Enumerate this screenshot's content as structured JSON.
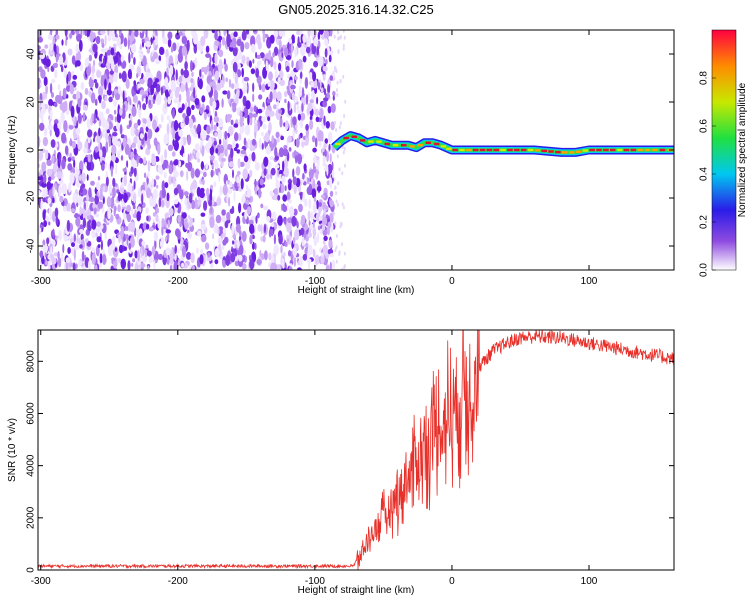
{
  "title": "GN05.2025.316.14.32.C25",
  "chart_data": [
    {
      "type": "heatmap",
      "xlabel": "Height of straight line (km)",
      "ylabel": "Frequency (Hz)",
      "xlim": [
        -302,
        162
      ],
      "ylim": [
        -50,
        50
      ],
      "xticks": [
        -300,
        -200,
        -100,
        0,
        100
      ],
      "yticks": [
        -40,
        -20,
        0,
        20,
        40
      ],
      "noise_region": [
        -302,
        -86
      ],
      "signal_track": {
        "x": [
          -86,
          -80,
          -74,
          -68,
          -62,
          -56,
          -50,
          -44,
          -38,
          -32,
          -26,
          -20,
          -14,
          -8,
          0,
          20,
          40,
          60,
          80,
          90,
          100,
          120,
          140,
          162
        ],
        "freq": [
          1,
          4,
          6,
          5,
          3,
          4,
          3,
          2,
          2,
          2,
          1,
          3,
          3,
          2,
          0,
          0,
          0,
          0,
          -1,
          -1,
          0,
          0,
          0,
          0
        ]
      },
      "colorbar": {
        "label": "Normalized spectral amplitude",
        "range": [
          0,
          1
        ],
        "ticks": [
          "0.0",
          "0.2",
          "0.4",
          "0.6",
          "0.8"
        ]
      }
    },
    {
      "type": "line",
      "xlabel": "Height of straight line (km)",
      "ylabel": "SNR (10 * v/v)",
      "xlim": [
        -302,
        162
      ],
      "ylim": [
        0,
        9200
      ],
      "xticks": [
        -300,
        -200,
        -100,
        0,
        100
      ],
      "yticks": [
        0,
        2000,
        4000,
        6000,
        8000
      ],
      "series": [
        {
          "name": "SNR",
          "color": "#e8302a",
          "x": [
            -302,
            -150,
            -72,
            -66,
            -60,
            -50,
            -40,
            -30,
            -20,
            -10,
            0,
            10,
            20,
            30,
            40,
            50,
            60,
            80,
            100,
            120,
            140,
            162
          ],
          "y": [
            150,
            150,
            150,
            600,
            1300,
            2000,
            2800,
            3700,
            4700,
            5400,
            6200,
            7000,
            7800,
            8400,
            8700,
            8900,
            8950,
            8900,
            8700,
            8500,
            8300,
            8100
          ]
        }
      ]
    }
  ]
}
